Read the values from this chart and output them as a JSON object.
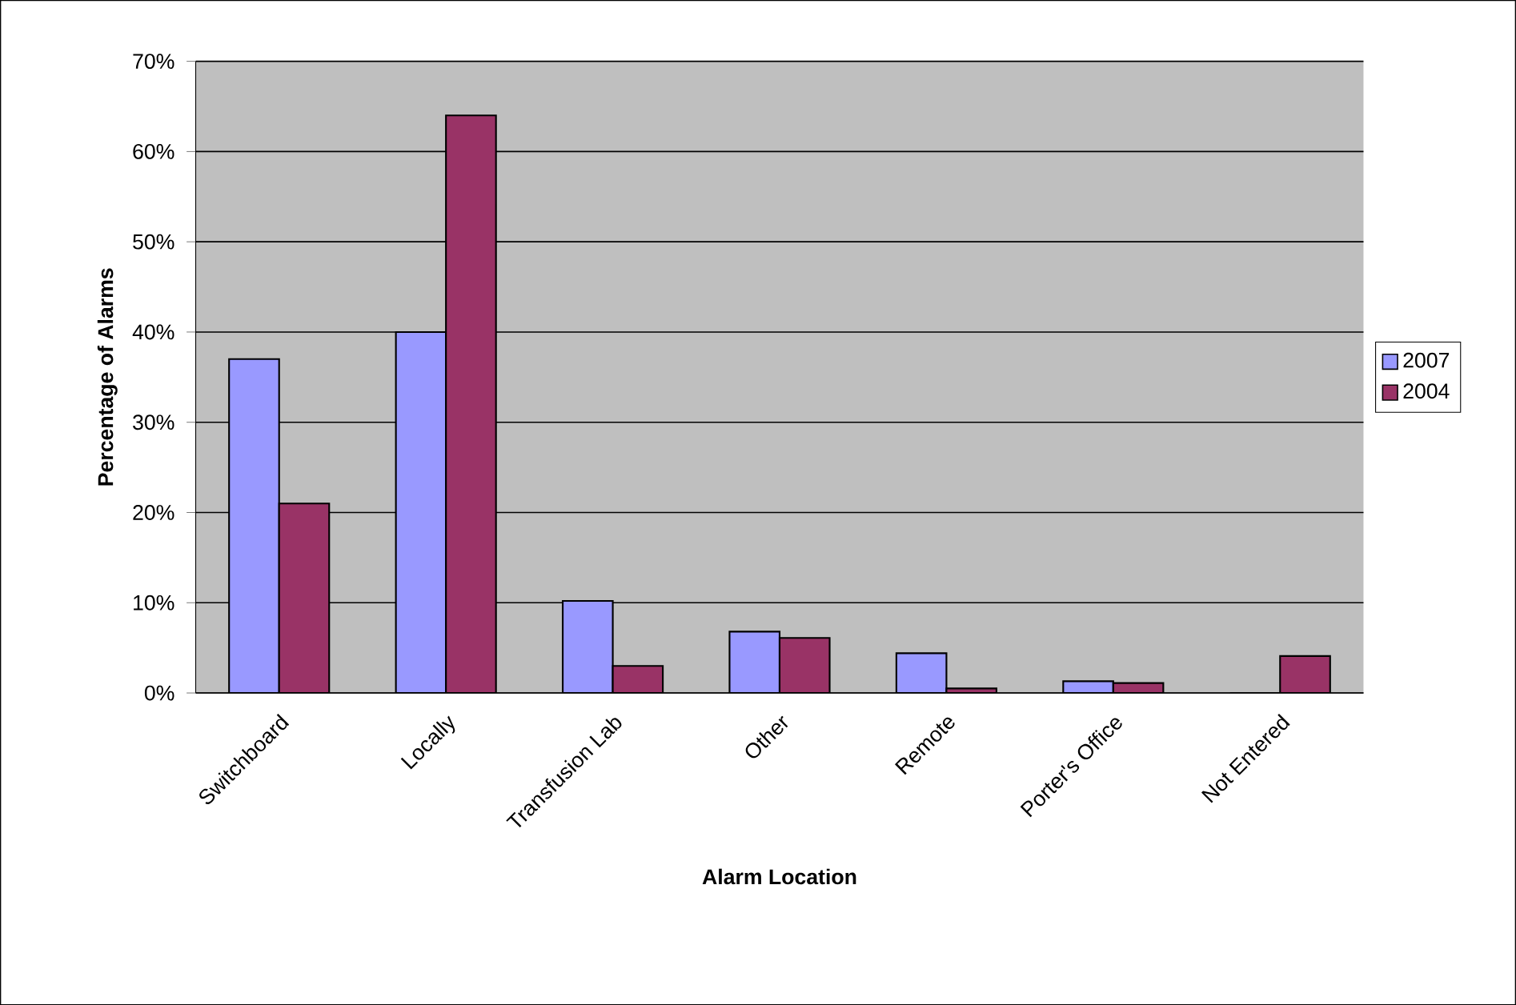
{
  "chart_data": {
    "type": "bar",
    "xlabel": "Alarm Location",
    "ylabel": "Percentage of Alarms",
    "categories": [
      "Switchboard",
      "Locally",
      "Transfusion Lab",
      "Other",
      "Remote",
      "Porter's Office",
      "Not Entered"
    ],
    "series": [
      {
        "name": "2007",
        "color": "#9999ff",
        "values": [
          37,
          40,
          10.2,
          6.8,
          4.4,
          1.3,
          0
        ]
      },
      {
        "name": "2004",
        "color": "#993366",
        "values": [
          21,
          64,
          3.0,
          6.1,
          0.5,
          1.1,
          4.1
        ]
      }
    ],
    "ylim": [
      0,
      70
    ],
    "yticks": [
      {
        "value": 0,
        "label": "0%"
      },
      {
        "value": 10,
        "label": "10%"
      },
      {
        "value": 20,
        "label": "20%"
      },
      {
        "value": 30,
        "label": "30%"
      },
      {
        "value": 40,
        "label": "40%"
      },
      {
        "value": 50,
        "label": "50%"
      },
      {
        "value": 60,
        "label": "60%"
      },
      {
        "value": 70,
        "label": "70%"
      }
    ],
    "grid": "y",
    "legend": "right"
  }
}
